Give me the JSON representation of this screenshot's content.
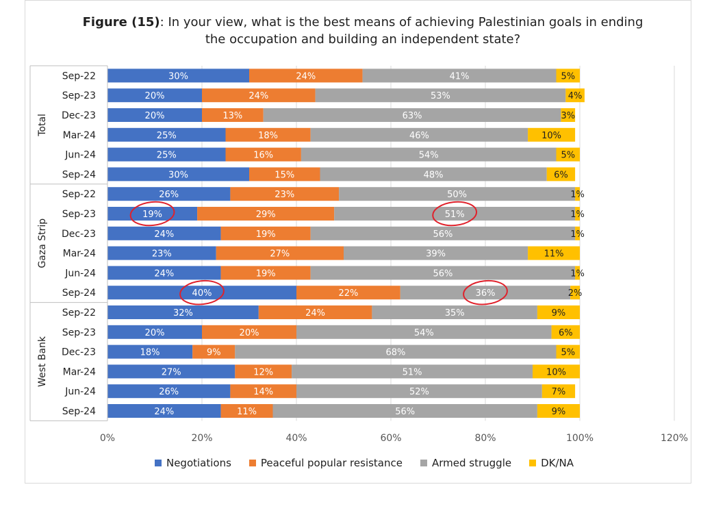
{
  "title_prefix": "Figure (15)",
  "title_text": ": In your view, what is the best means of achieving Palestinian goals in ending the occupation and building an independent state?",
  "chart_data": {
    "type": "bar",
    "orientation": "horizontal",
    "stacked": true,
    "groups": [
      {
        "name": "Total",
        "categories": [
          "Sep-22",
          "Sep-23",
          "Dec-23",
          "Mar-24",
          "Jun-24",
          "Sep-24"
        ]
      },
      {
        "name": "Gaza Strip",
        "categories": [
          "Sep-22",
          "Sep-23",
          "Dec-23",
          "Mar-24",
          "Jun-24",
          "Sep-24"
        ]
      },
      {
        "name": "West Bank",
        "categories": [
          "Sep-22",
          "Sep-23",
          "Dec-23",
          "Mar-24",
          "Jun-24",
          "Sep-24"
        ]
      }
    ],
    "series": [
      {
        "name": "Negotiations",
        "color": "#4472C4",
        "values": [
          30,
          20,
          20,
          25,
          25,
          30,
          26,
          19,
          24,
          23,
          24,
          40,
          32,
          20,
          18,
          27,
          26,
          24
        ]
      },
      {
        "name": "Peaceful popular resistance",
        "color": "#ED7D31",
        "values": [
          24,
          24,
          13,
          18,
          16,
          15,
          23,
          29,
          19,
          27,
          19,
          22,
          24,
          20,
          9,
          12,
          14,
          11
        ]
      },
      {
        "name": "Armed struggle",
        "color": "#A5A5A5",
        "values": [
          41,
          53,
          63,
          46,
          54,
          48,
          50,
          51,
          56,
          39,
          56,
          36,
          35,
          54,
          68,
          51,
          52,
          56
        ]
      },
      {
        "name": "DK/NA",
        "color": "#FFC000",
        "values": [
          5,
          4,
          3,
          10,
          5,
          6,
          1,
          1,
          1,
          11,
          1,
          2,
          9,
          6,
          5,
          10,
          7,
          9
        ]
      }
    ],
    "xticks": [
      "0%",
      "20%",
      "40%",
      "60%",
      "80%",
      "100%",
      "120%"
    ],
    "xlim": [
      0,
      120
    ],
    "grid": "vertical",
    "legend_position": "bottom",
    "annotations": {
      "circled": [
        {
          "series": "Negotiations",
          "row": 7
        },
        {
          "series": "Armed struggle",
          "row": 7
        },
        {
          "series": "Negotiations",
          "row": 11
        },
        {
          "series": "Armed struggle",
          "row": 11
        }
      ]
    }
  }
}
